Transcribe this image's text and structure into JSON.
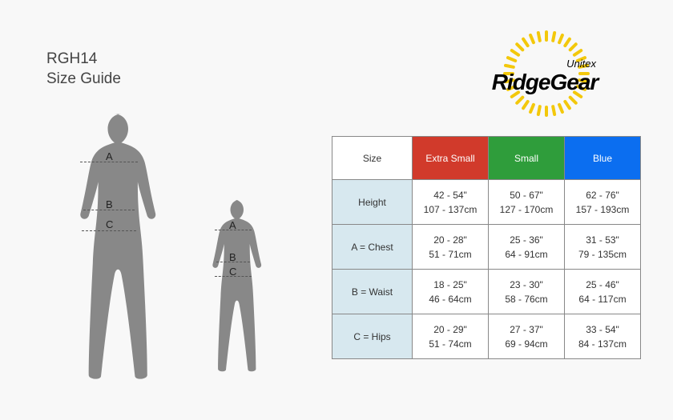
{
  "title_line1": "RGH14",
  "title_line2": "Size Guide",
  "logo": {
    "top": "Unitex",
    "main": "RidgeGear",
    "ray_color": "#f3c80b"
  },
  "figures": {
    "silhouette_color": "#888888",
    "large": {
      "labels": {
        "A": "A",
        "B": "B",
        "C": "C"
      }
    },
    "small": {
      "labels": {
        "A": "A",
        "B": "B",
        "C": "C"
      }
    }
  },
  "table": {
    "header": {
      "size_label": "Size",
      "cols": [
        {
          "label": "Extra Small",
          "color": "#d13a2b"
        },
        {
          "label": "Small",
          "color": "#2f9d3b"
        },
        {
          "label": "Blue",
          "color": "#0b6ef0"
        }
      ]
    },
    "rows": [
      {
        "label": "Height",
        "cells": [
          {
            "in": "42 - 54\"",
            "cm": "107 - 137cm"
          },
          {
            "in": "50 - 67\"",
            "cm": "127 - 170cm"
          },
          {
            "in": "62 - 76\"",
            "cm": "157 - 193cm"
          }
        ]
      },
      {
        "label": "A = Chest",
        "cells": [
          {
            "in": "20 - 28\"",
            "cm": "51 - 71cm"
          },
          {
            "in": "25 - 36\"",
            "cm": "64 - 91cm"
          },
          {
            "in": "31 - 53\"",
            "cm": "79 - 135cm"
          }
        ]
      },
      {
        "label": "B = Waist",
        "cells": [
          {
            "in": "18 - 25\"",
            "cm": "46 - 64cm"
          },
          {
            "in": "23 - 30\"",
            "cm": "58 - 76cm"
          },
          {
            "in": "25 - 46\"",
            "cm": "64 - 117cm"
          }
        ]
      },
      {
        "label": "C = Hips",
        "cells": [
          {
            "in": "20 - 29\"",
            "cm": "51 - 74cm"
          },
          {
            "in": "27 - 37\"",
            "cm": "69 - 94cm"
          },
          {
            "in": "33 - 54\"",
            "cm": "84 - 137cm"
          }
        ]
      }
    ]
  }
}
